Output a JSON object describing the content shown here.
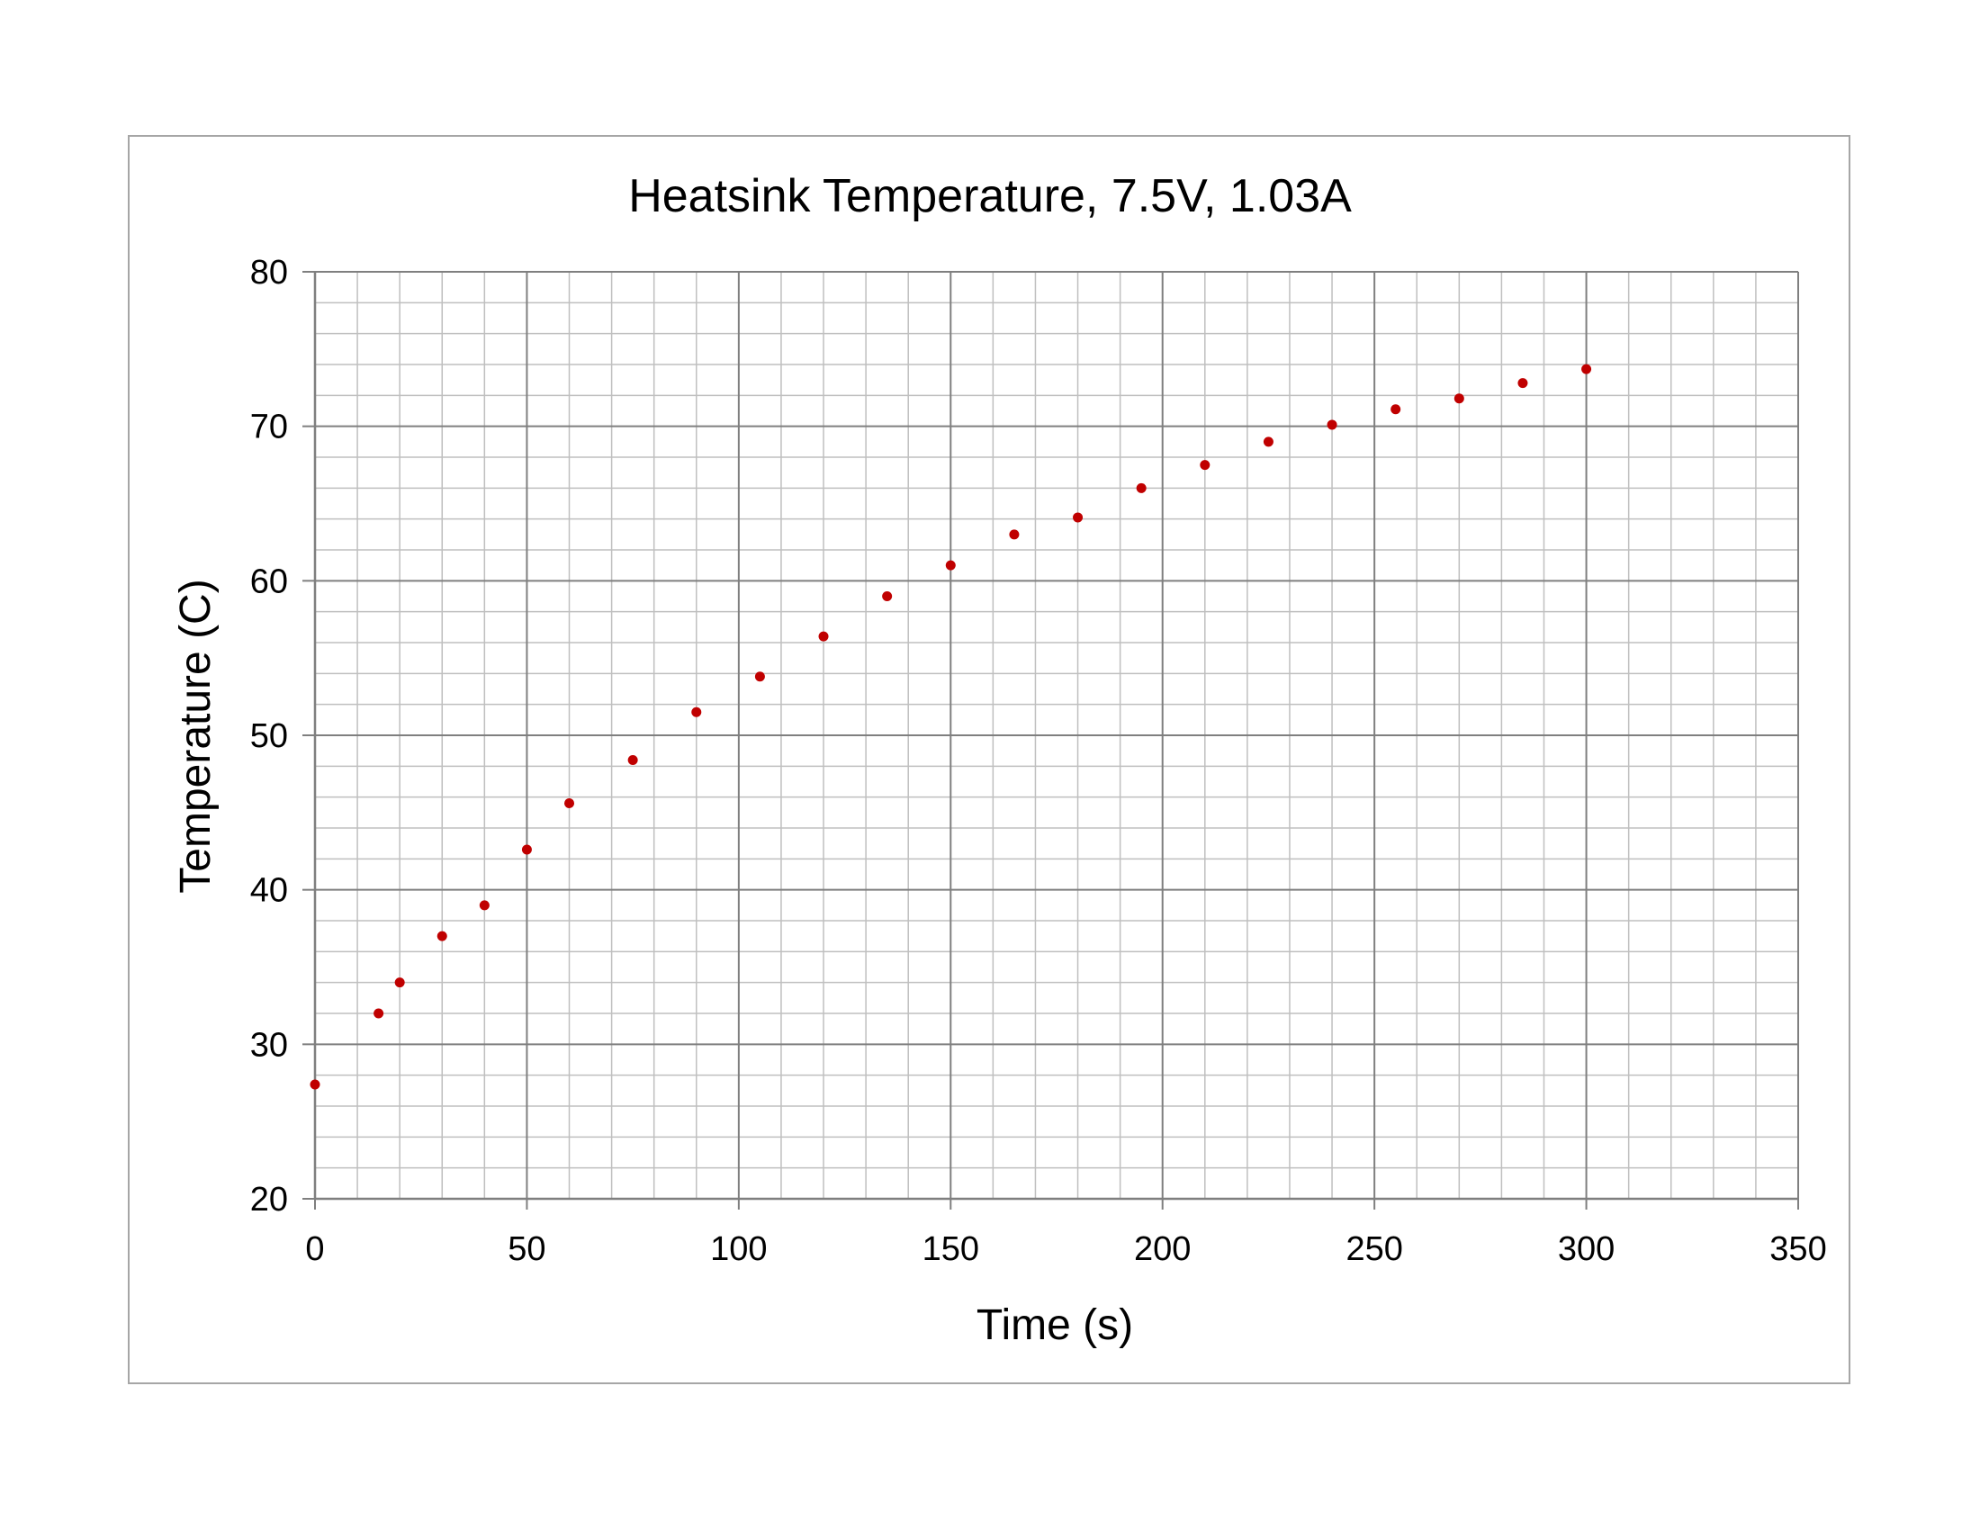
{
  "chart_data": {
    "type": "scatter",
    "title": "Heatsink Temperature, 7.5V, 1.03A",
    "xlabel": "Time (s)",
    "ylabel": "Temperature (C)",
    "xlim": [
      0,
      350
    ],
    "ylim": [
      20,
      80
    ],
    "x_major_step": 50,
    "y_major_step": 10,
    "x_minor_step": 10,
    "y_minor_step": 2,
    "xticks": [
      "0",
      "50",
      "100",
      "150",
      "200",
      "250",
      "300",
      "350"
    ],
    "yticks": [
      "20",
      "30",
      "40",
      "50",
      "60",
      "70",
      "80"
    ],
    "grid": true,
    "legend": "none",
    "marker_color": "#c00000",
    "x": [
      0,
      15,
      20,
      30,
      40,
      50,
      60,
      75,
      90,
      105,
      120,
      135,
      150,
      165,
      180,
      195,
      210,
      225,
      240,
      255,
      270,
      285,
      300
    ],
    "y": [
      27.4,
      32.0,
      34.0,
      37.0,
      39.0,
      42.6,
      45.6,
      48.4,
      51.5,
      53.8,
      56.4,
      59.0,
      61.0,
      63.0,
      64.1,
      66.0,
      67.5,
      69.0,
      70.1,
      71.1,
      71.8,
      72.8,
      73.7
    ]
  }
}
